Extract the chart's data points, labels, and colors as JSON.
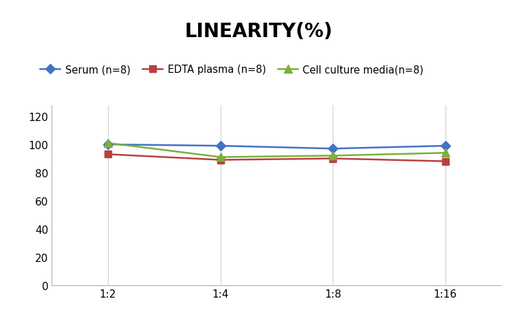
{
  "title": "LINEARITY(%)",
  "x_labels": [
    "1:2",
    "1:4",
    "1:8",
    "1:16"
  ],
  "x_positions": [
    0,
    1,
    2,
    3
  ],
  "series": [
    {
      "label": "Serum (n=8)",
      "values": [
        100,
        99,
        97,
        99
      ],
      "color": "#4472C4",
      "marker": "D",
      "marker_size": 7,
      "linewidth": 1.8
    },
    {
      "label": "EDTA plasma (n=8)",
      "values": [
        93,
        89,
        90,
        88
      ],
      "color": "#B94040",
      "marker": "s",
      "marker_size": 7,
      "linewidth": 1.8
    },
    {
      "label": "Cell culture media(n=8)",
      "values": [
        101,
        91,
        92,
        94
      ],
      "color": "#7DAF3A",
      "marker": "^",
      "marker_size": 8,
      "linewidth": 1.8
    }
  ],
  "ylim": [
    0,
    128
  ],
  "yticks": [
    0,
    20,
    40,
    60,
    80,
    100,
    120
  ],
  "background_color": "#ffffff",
  "grid_color": "#d0d0d0",
  "title_fontsize": 20,
  "legend_fontsize": 10.5,
  "tick_fontsize": 11
}
